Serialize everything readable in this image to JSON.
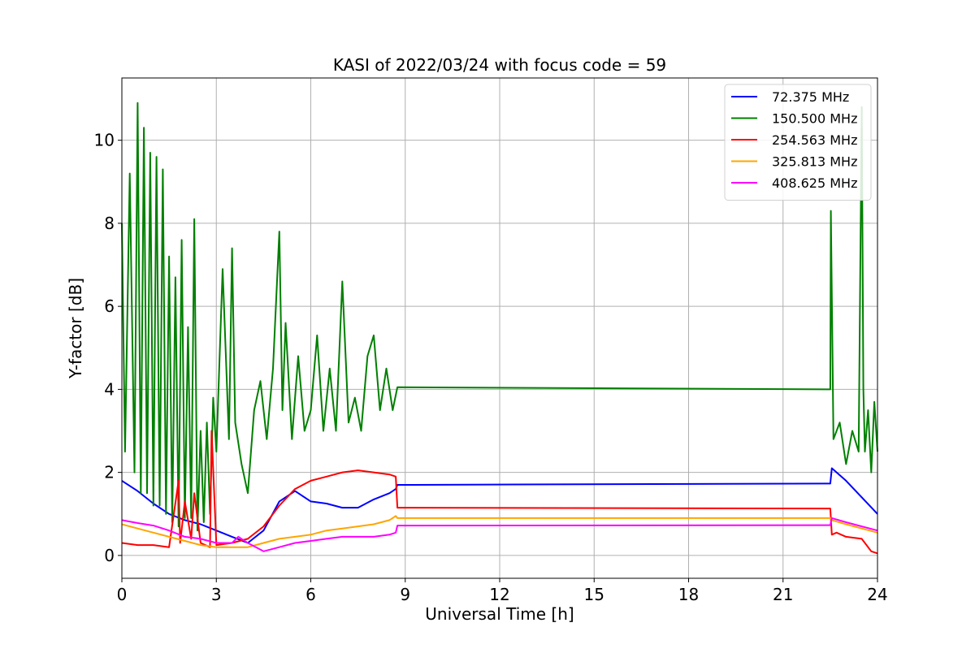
{
  "chart_data": {
    "type": "line",
    "title": "KASI of 2022/03/24 with focus code = 59",
    "xlabel": "Universal Time [h]",
    "ylabel": "Y-factor [dB]",
    "xlim": [
      0,
      24
    ],
    "ylim": [
      -0.55,
      11.5
    ],
    "x_ticks": [
      0,
      3,
      6,
      9,
      12,
      15,
      18,
      21,
      24
    ],
    "y_ticks": [
      0,
      2,
      4,
      6,
      8,
      10
    ],
    "grid": true,
    "legend_position": "top-right",
    "series": [
      {
        "name": "72.375 MHz",
        "color": "#0000ff",
        "x": [
          0,
          0.5,
          1,
          1.5,
          2,
          2.5,
          3,
          3.5,
          4,
          4.5,
          5,
          5.5,
          6,
          6.5,
          7,
          7.5,
          8,
          8.5,
          8.7,
          8.75,
          22.5,
          22.55,
          23,
          23.5,
          24
        ],
        "y": [
          1.8,
          1.55,
          1.25,
          1.0,
          0.85,
          0.75,
          0.6,
          0.45,
          0.3,
          0.6,
          1.3,
          1.55,
          1.3,
          1.25,
          1.15,
          1.15,
          1.35,
          1.5,
          1.6,
          1.7,
          1.73,
          2.1,
          1.8,
          1.4,
          1.0
        ]
      },
      {
        "name": "150.500 MHz",
        "color": "#008000",
        "x": [
          0,
          0.1,
          0.25,
          0.4,
          0.5,
          0.6,
          0.7,
          0.8,
          0.9,
          1.0,
          1.1,
          1.2,
          1.3,
          1.4,
          1.5,
          1.6,
          1.7,
          1.8,
          1.9,
          2.0,
          2.1,
          2.2,
          2.3,
          2.4,
          2.5,
          2.6,
          2.7,
          2.8,
          2.9,
          3.0,
          3.2,
          3.4,
          3.5,
          3.6,
          3.8,
          4.0,
          4.2,
          4.4,
          4.6,
          4.8,
          5.0,
          5.1,
          5.2,
          5.4,
          5.6,
          5.8,
          6.0,
          6.2,
          6.4,
          6.6,
          6.8,
          7.0,
          7.2,
          7.4,
          7.6,
          7.8,
          8.0,
          8.2,
          8.4,
          8.6,
          8.75,
          22.5,
          22.52,
          22.6,
          22.8,
          23.0,
          23.2,
          23.4,
          23.5,
          23.55,
          23.6,
          23.7,
          23.8,
          23.9,
          24.0
        ],
        "y": [
          8.0,
          2.5,
          9.2,
          2.0,
          10.9,
          1.5,
          10.3,
          1.5,
          9.7,
          1.2,
          9.6,
          1.2,
          9.3,
          1.0,
          7.2,
          0.8,
          6.7,
          0.7,
          7.6,
          0.9,
          5.5,
          0.9,
          8.1,
          0.6,
          3.0,
          0.8,
          3.2,
          1.0,
          3.8,
          2.5,
          6.9,
          2.8,
          7.4,
          3.2,
          2.2,
          1.5,
          3.5,
          4.2,
          2.8,
          4.5,
          7.8,
          3.5,
          5.6,
          2.8,
          4.8,
          3.0,
          3.5,
          5.3,
          3.0,
          4.5,
          3.0,
          6.6,
          3.2,
          3.8,
          3.0,
          4.8,
          5.3,
          3.5,
          4.5,
          3.5,
          4.05,
          4.0,
          8.3,
          2.8,
          3.2,
          2.2,
          3.0,
          2.5,
          10.8,
          4.0,
          2.5,
          3.5,
          2.0,
          3.7,
          2.5
        ]
      },
      {
        "name": "254.563 MHz",
        "color": "#ff0000",
        "x": [
          0,
          0.5,
          1,
          1.5,
          1.8,
          1.85,
          2.0,
          2.2,
          2.3,
          2.5,
          2.8,
          2.85,
          3.0,
          3.5,
          4.0,
          4.5,
          5.0,
          5.5,
          6.0,
          6.5,
          7.0,
          7.5,
          8.0,
          8.5,
          8.7,
          8.75,
          22.5,
          22.55,
          22.7,
          23.0,
          23.5,
          23.8,
          24.0
        ],
        "y": [
          0.3,
          0.25,
          0.25,
          0.2,
          1.8,
          0.3,
          1.3,
          0.4,
          1.5,
          0.3,
          0.2,
          3.0,
          0.25,
          0.3,
          0.4,
          0.7,
          1.2,
          1.6,
          1.8,
          1.9,
          2.0,
          2.05,
          2.0,
          1.95,
          1.9,
          1.15,
          1.13,
          0.5,
          0.55,
          0.45,
          0.4,
          0.1,
          0.05
        ]
      },
      {
        "name": "325.813 MHz",
        "color": "#ffa500",
        "x": [
          0,
          0.5,
          1,
          1.5,
          2,
          2.5,
          3,
          3.5,
          4,
          4.5,
          5,
          5.5,
          6,
          6.5,
          7,
          7.5,
          8,
          8.5,
          8.7,
          8.75,
          22.5,
          22.55,
          23,
          23.5,
          24
        ],
        "y": [
          0.75,
          0.65,
          0.55,
          0.45,
          0.35,
          0.25,
          0.2,
          0.2,
          0.2,
          0.3,
          0.4,
          0.45,
          0.5,
          0.6,
          0.65,
          0.7,
          0.75,
          0.85,
          0.95,
          0.9,
          0.9,
          0.85,
          0.75,
          0.65,
          0.55
        ]
      },
      {
        "name": "408.625 MHz",
        "color": "#ff00ff",
        "x": [
          0,
          0.5,
          1,
          1.5,
          2,
          2.5,
          3,
          3.5,
          3.7,
          4,
          4.5,
          5,
          5.5,
          6,
          6.5,
          7,
          7.5,
          8,
          8.5,
          8.7,
          8.75,
          22.5,
          22.55,
          23,
          23.5,
          24
        ],
        "y": [
          0.85,
          0.78,
          0.72,
          0.6,
          0.45,
          0.4,
          0.3,
          0.3,
          0.45,
          0.3,
          0.1,
          0.2,
          0.3,
          0.35,
          0.4,
          0.45,
          0.45,
          0.45,
          0.5,
          0.55,
          0.72,
          0.73,
          0.9,
          0.8,
          0.7,
          0.6
        ]
      }
    ]
  }
}
